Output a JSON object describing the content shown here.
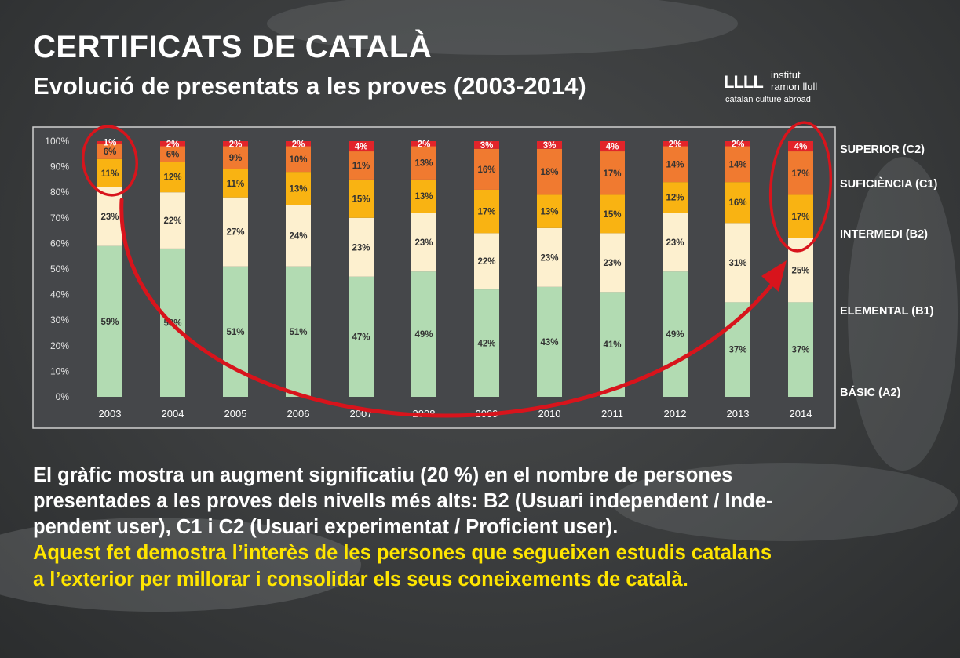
{
  "header": {
    "title": "CERTIFICATS DE CATALÀ",
    "subtitle": "Evolució de presentats a les proves (2003-2014)"
  },
  "logo": {
    "mark": "LLLL",
    "line1": "institut",
    "line2": "ramon llull",
    "line3": "catalan culture abroad"
  },
  "chart_data": {
    "type": "bar",
    "stacked": "percent",
    "categories": [
      "2003",
      "2004",
      "2005",
      "2006",
      "2007",
      "2008",
      "2009",
      "2010",
      "2011",
      "2012",
      "2013",
      "2014"
    ],
    "y_ticks": [
      "0%",
      "10%",
      "20%",
      "30%",
      "40%",
      "50%",
      "60%",
      "70%",
      "80%",
      "90%",
      "100%"
    ],
    "ylim": [
      0,
      100
    ],
    "legend_position": "right",
    "series": [
      {
        "name": "BÁSIC (A2)",
        "color": "#b2dbb2",
        "values": [
          59,
          58,
          51,
          51,
          47,
          49,
          42,
          43,
          41,
          49,
          37,
          37
        ]
      },
      {
        "name": "ELEMENTAL (B1)",
        "color": "#fdf0cf",
        "values": [
          23,
          22,
          27,
          24,
          23,
          23,
          22,
          23,
          23,
          23,
          31,
          25
        ]
      },
      {
        "name": "INTERMEDI (B2)",
        "color": "#f9b312",
        "values": [
          11,
          12,
          11,
          13,
          15,
          13,
          17,
          13,
          15,
          12,
          16,
          17
        ]
      },
      {
        "name": "SUFICIÈNCIA (C1)",
        "color": "#f07a30",
        "values": [
          6,
          6,
          9,
          10,
          11,
          13,
          16,
          18,
          17,
          14,
          14,
          17
        ]
      },
      {
        "name": "SUPERIOR (C2)",
        "color": "#e2242a",
        "values": [
          1,
          2,
          2,
          2,
          4,
          2,
          3,
          3,
          4,
          2,
          2,
          4
        ]
      }
    ],
    "label_suffix": "%",
    "annotations": [
      "red circle around 2003 upper segments",
      "red circle around 2014 upper segments",
      "red curved arrow from 2003 to 2014"
    ]
  },
  "paragraph": {
    "line1": "El gràfic mostra un augment significatiu (20 %) en el nombre de persones",
    "line2": "presentades a les proves dels nivells més alts: B2 (Usuari independent / Inde-",
    "line3": "pendent user), C1 i C2 (Usuari experimentat / Proficient user).",
    "line4": "Aquest fet demostra l’interès de les persones que segueixen estudis catalans",
    "line5": "a l’exterior per millorar i consolidar els seus coneixements de català."
  },
  "colors": {
    "background": "#3d3f40",
    "highlight_text": "#ffe500",
    "annotation_red": "#d8141c"
  }
}
